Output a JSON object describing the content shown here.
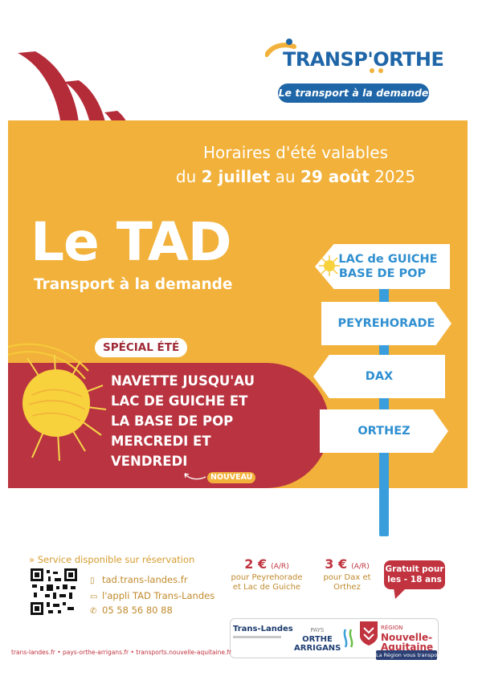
{
  "logo": {
    "word_t": "T",
    "word_rest": "RANSP'ORTHE",
    "tagline": "Le transport à la demande"
  },
  "dates": {
    "line1": "Horaires d'été valables",
    "prefix": "du ",
    "start": "2 juillet",
    "middle": " au ",
    "end": "29 août",
    "year": " 2025"
  },
  "hero": {
    "title": "Le TAD",
    "subtitle": "Transport à la demande"
  },
  "special": {
    "badge": "SPÉCIAL ÉTÉ",
    "lines": [
      "NAVETTE JUSQU'AU",
      "LAC DE GUICHE ET",
      "LA BASE DE POP",
      "MERCREDI ET",
      "VENDREDI"
    ],
    "new_tag": "NOUVEAU"
  },
  "signpost": {
    "sign1_line1": "LAC de GUICHE",
    "sign1_line2": "BASE DE POP",
    "sign2": "PEYREHORADE",
    "sign3": "DAX",
    "sign4": "ORTHEZ"
  },
  "info": {
    "reservation": "Service disponible sur réservation",
    "website": "tad.trans-landes.fr",
    "app": "l'appli TAD Trans-Landes",
    "phone": "05 58 56 80 88"
  },
  "prices": {
    "p1_amount": "2 €",
    "p1_ar": "(A/R)",
    "p1_desc1": "pour Peyrehorade",
    "p1_desc2": "et Lac de Guiche",
    "p2_amount": "3 €",
    "p2_ar": "(A/R)",
    "p2_desc1": "pour Dax et",
    "p2_desc2": "Orthez",
    "free_line1": "Gratuit pour",
    "free_line2": "les - 18 ans"
  },
  "partners": {
    "trans_landes": "Trans-Landes",
    "pays_orthe_small": "PAYS",
    "pays_orthe_line1": "ORTHE",
    "pays_orthe_line2": "ARRIGANS",
    "region_small": "RÉGION",
    "region_name_1": "Nouvelle-",
    "region_name_2": "Aquitaine",
    "region_tag": "La Région vous transporte"
  },
  "footer": "trans-landes.fr • pays-orthe-arrigans.fr • transports.nouvelle-aquitaine.fr",
  "colors": {
    "orange": "#f2b13a",
    "crimson": "#b93440",
    "blue": "#2f8fd0",
    "navy": "#1f66a8"
  }
}
